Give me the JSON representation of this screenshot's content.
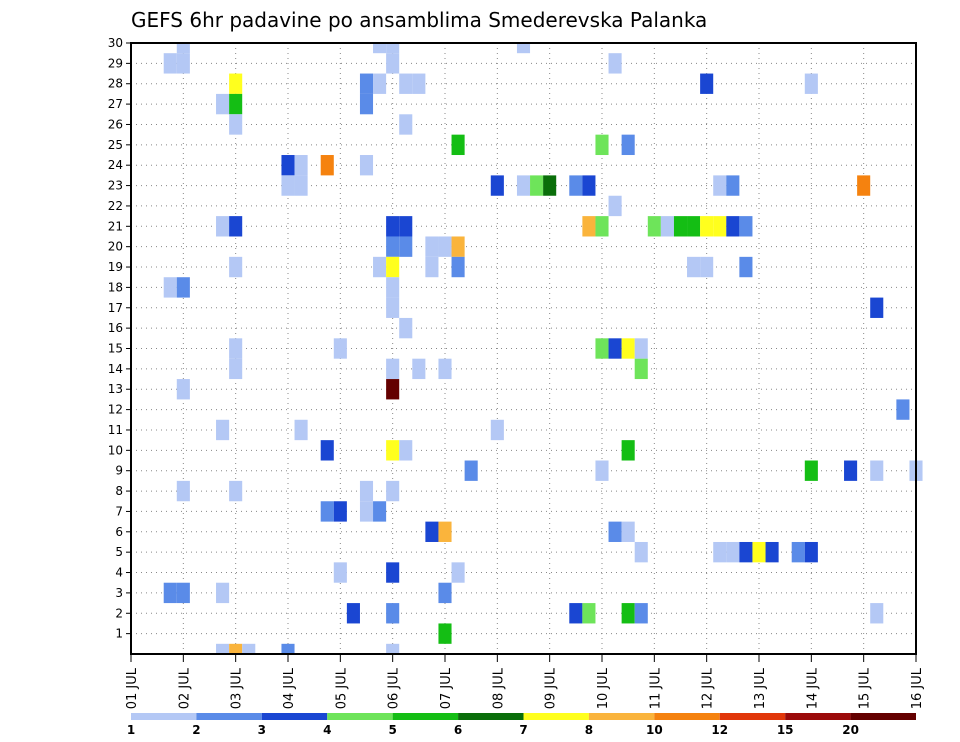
{
  "chart_data": {
    "type": "heatmap",
    "title": "GEFS 6hr padavine po ansamblima Smederevska Palanka",
    "xlabel": "",
    "ylabel": "",
    "x_tick_labels": [
      "01 JUL",
      "02 JUL",
      "03 JUL",
      "04 JUL",
      "05 JUL",
      "06 JUL",
      "07 JUL",
      "08 JUL",
      "09 JUL",
      "10 JUL",
      "11 JUL",
      "12 JUL",
      "13 JUL",
      "14 JUL",
      "15 JUL",
      "16 JUL"
    ],
    "xlim": [
      1,
      16
    ],
    "x_unit": "day of July",
    "y_tick_labels": [
      "1",
      "2",
      "3",
      "4",
      "5",
      "6",
      "7",
      "8",
      "9",
      "10",
      "11",
      "12",
      "13",
      "14",
      "15",
      "16",
      "17",
      "18",
      "19",
      "20",
      "21",
      "22",
      "23",
      "24",
      "25",
      "26",
      "27",
      "28",
      "29",
      "30"
    ],
    "ylim": [
      0,
      30
    ],
    "y_unit": "ensemble member",
    "grid": "dotted",
    "colorbar": {
      "labels": [
        "1",
        "2",
        "3",
        "4",
        "5",
        "6",
        "7",
        "8",
        "10",
        "12",
        "15",
        "20"
      ],
      "colors": [
        "#b4c8f5",
        "#5a8be8",
        "#1a46d2",
        "#6ee45a",
        "#14be14",
        "#0a6e0a",
        "#ffff1e",
        "#fab43c",
        "#f5820f",
        "#e1370a",
        "#9b0a0a",
        "#640000"
      ]
    },
    "cells": [
      [
        2.0,
        30,
        0
      ],
      [
        2.0,
        29,
        0
      ],
      [
        1.75,
        29,
        0
      ],
      [
        5.75,
        30,
        0
      ],
      [
        6.0,
        30,
        0
      ],
      [
        6.0,
        29,
        0
      ],
      [
        8.5,
        30,
        0
      ],
      [
        10.25,
        29,
        0
      ],
      [
        3.0,
        28,
        6
      ],
      [
        5.5,
        28,
        1
      ],
      [
        5.75,
        28,
        0
      ],
      [
        6.25,
        28,
        0
      ],
      [
        6.5,
        28,
        0
      ],
      [
        12.0,
        28,
        2
      ],
      [
        14.0,
        28,
        0
      ],
      [
        2.75,
        27,
        0
      ],
      [
        3.0,
        27,
        4
      ],
      [
        5.5,
        27,
        1
      ],
      [
        3.0,
        26,
        0
      ],
      [
        6.25,
        26,
        0
      ],
      [
        7.25,
        25,
        4
      ],
      [
        10.0,
        25,
        3
      ],
      [
        10.5,
        25,
        1
      ],
      [
        4.0,
        24,
        2
      ],
      [
        4.25,
        24,
        0
      ],
      [
        4.75,
        24,
        8
      ],
      [
        5.5,
        24,
        0
      ],
      [
        4.0,
        23,
        0
      ],
      [
        4.25,
        23,
        0
      ],
      [
        8.0,
        23,
        2
      ],
      [
        8.5,
        23,
        0
      ],
      [
        8.75,
        23,
        3
      ],
      [
        9.0,
        23,
        5
      ],
      [
        9.5,
        23,
        1
      ],
      [
        9.75,
        23,
        2
      ],
      [
        12.25,
        23,
        0
      ],
      [
        12.5,
        23,
        1
      ],
      [
        15.0,
        23,
        8
      ],
      [
        10.25,
        22,
        0
      ],
      [
        2.75,
        21,
        0
      ],
      [
        3.0,
        21,
        2
      ],
      [
        6.0,
        21,
        2
      ],
      [
        6.25,
        21,
        2
      ],
      [
        9.75,
        21,
        7
      ],
      [
        10.0,
        21,
        3
      ],
      [
        11.0,
        21,
        3
      ],
      [
        11.25,
        21,
        0
      ],
      [
        11.5,
        21,
        4
      ],
      [
        11.75,
        21,
        4
      ],
      [
        12.0,
        21,
        6
      ],
      [
        12.25,
        21,
        6
      ],
      [
        12.5,
        21,
        2
      ],
      [
        12.75,
        21,
        1
      ],
      [
        6.0,
        20,
        1
      ],
      [
        6.25,
        20,
        1
      ],
      [
        6.75,
        20,
        0
      ],
      [
        7.0,
        20,
        0
      ],
      [
        7.25,
        20,
        7
      ],
      [
        3.0,
        19,
        0
      ],
      [
        5.75,
        19,
        0
      ],
      [
        6.0,
        19,
        6
      ],
      [
        6.75,
        19,
        0
      ],
      [
        7.25,
        19,
        1
      ],
      [
        11.75,
        19,
        0
      ],
      [
        12.0,
        19,
        0
      ],
      [
        12.75,
        19,
        1
      ],
      [
        1.75,
        18,
        0
      ],
      [
        2.0,
        18,
        1
      ],
      [
        6.0,
        18,
        0
      ],
      [
        6.0,
        17,
        0
      ],
      [
        15.25,
        17,
        2
      ],
      [
        6.25,
        16,
        0
      ],
      [
        3.0,
        15,
        0
      ],
      [
        5.0,
        15,
        0
      ],
      [
        10.0,
        15,
        3
      ],
      [
        10.25,
        15,
        2
      ],
      [
        10.5,
        15,
        6
      ],
      [
        10.75,
        15,
        0
      ],
      [
        3.0,
        14,
        0
      ],
      [
        6.0,
        14,
        0
      ],
      [
        6.5,
        14,
        0
      ],
      [
        7.0,
        14,
        0
      ],
      [
        10.75,
        14,
        3
      ],
      [
        6.0,
        13,
        11
      ],
      [
        2.0,
        13,
        0
      ],
      [
        15.75,
        12,
        1
      ],
      [
        2.75,
        11,
        0
      ],
      [
        4.25,
        11,
        0
      ],
      [
        8.0,
        11,
        0
      ],
      [
        4.75,
        10,
        2
      ],
      [
        6.0,
        10,
        6
      ],
      [
        6.25,
        10,
        0
      ],
      [
        10.5,
        10,
        4
      ],
      [
        7.5,
        9,
        1
      ],
      [
        10.0,
        9,
        0
      ],
      [
        14.0,
        9,
        4
      ],
      [
        14.75,
        9,
        2
      ],
      [
        15.25,
        9,
        0
      ],
      [
        16.0,
        9,
        0
      ],
      [
        2.0,
        8,
        0
      ],
      [
        3.0,
        8,
        0
      ],
      [
        5.5,
        8,
        0
      ],
      [
        6.0,
        8,
        0
      ],
      [
        4.75,
        7,
        1
      ],
      [
        5.0,
        7,
        2
      ],
      [
        5.5,
        7,
        0
      ],
      [
        5.75,
        7,
        1
      ],
      [
        6.75,
        6,
        2
      ],
      [
        7.0,
        6,
        7
      ],
      [
        10.25,
        6,
        1
      ],
      [
        10.5,
        6,
        0
      ],
      [
        10.75,
        5,
        0
      ],
      [
        12.25,
        5,
        0
      ],
      [
        12.5,
        5,
        0
      ],
      [
        12.75,
        5,
        2
      ],
      [
        13.0,
        5,
        6
      ],
      [
        13.25,
        5,
        2
      ],
      [
        13.75,
        5,
        1
      ],
      [
        14.0,
        5,
        2
      ],
      [
        5.0,
        4,
        0
      ],
      [
        6.0,
        4,
        2
      ],
      [
        7.25,
        4,
        0
      ],
      [
        1.75,
        3,
        1
      ],
      [
        2.0,
        3,
        1
      ],
      [
        2.75,
        3,
        0
      ],
      [
        7.0,
        3,
        1
      ],
      [
        5.25,
        2,
        2
      ],
      [
        6.0,
        2,
        1
      ],
      [
        9.5,
        2,
        2
      ],
      [
        9.75,
        2,
        3
      ],
      [
        10.5,
        2,
        4
      ],
      [
        10.75,
        2,
        1
      ],
      [
        15.25,
        2,
        0
      ],
      [
        7.0,
        1,
        4
      ],
      [
        2.75,
        0,
        0
      ],
      [
        3.0,
        0,
        7
      ],
      [
        3.25,
        0,
        0
      ],
      [
        4.0,
        0,
        1
      ],
      [
        6.0,
        0,
        0
      ]
    ]
  }
}
